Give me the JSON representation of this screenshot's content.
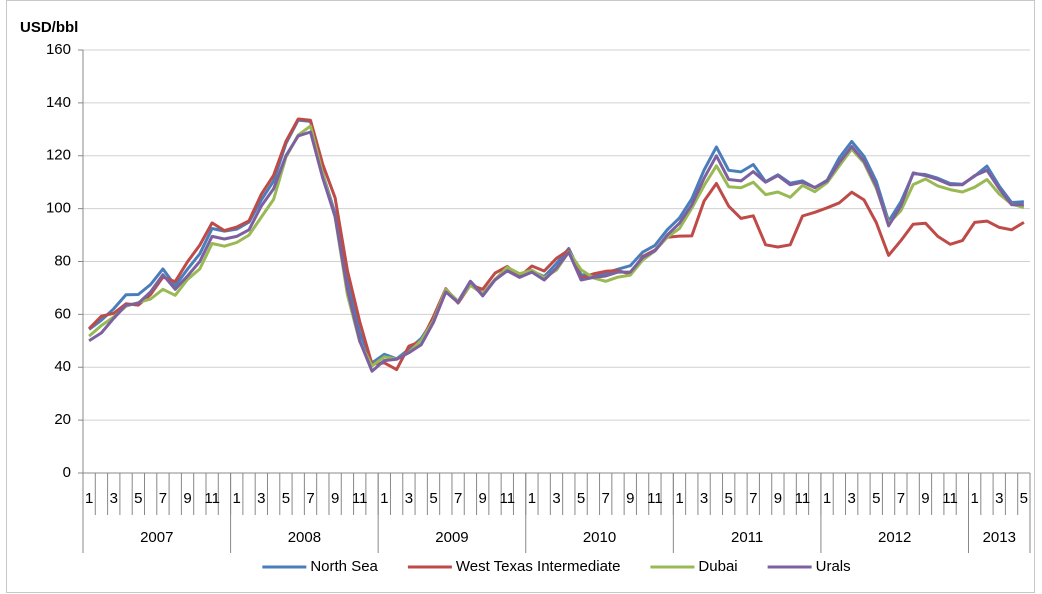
{
  "chart_data": {
    "type": "line",
    "y_axis_label": "USD/bbl",
    "categories": [
      "1",
      null,
      "3",
      null,
      "5",
      null,
      "7",
      null,
      "9",
      null,
      "11",
      null,
      "1",
      null,
      "3",
      null,
      "5",
      null,
      "7",
      null,
      "9",
      null,
      "11",
      null,
      "1",
      null,
      "3",
      null,
      "5",
      null,
      "7",
      null,
      "9",
      null,
      "11",
      null,
      "1",
      null,
      "3",
      null,
      "5",
      null,
      "7",
      null,
      "9",
      null,
      "11",
      null,
      "1",
      null,
      "3",
      null,
      "5",
      null,
      "7",
      null,
      "9",
      null,
      "11",
      null,
      "1",
      null,
      "3",
      null,
      "5",
      null,
      "7",
      null,
      "9",
      null,
      "11",
      null,
      "1",
      null,
      "3",
      null,
      "5"
    ],
    "year_groups": [
      {
        "label": "2007",
        "months": 12
      },
      {
        "label": "2008",
        "months": 12
      },
      {
        "label": "2009",
        "months": 12
      },
      {
        "label": "2010",
        "months": 12
      },
      {
        "label": "2011",
        "months": 12
      },
      {
        "label": "2012",
        "months": 12
      },
      {
        "label": "2013",
        "months": 5
      }
    ],
    "series": [
      {
        "name": "North Sea",
        "color": "#4a7ebb",
        "values": [
          54.3,
          57.8,
          62.1,
          67.4,
          67.5,
          71.3,
          77.2,
          70.8,
          77.1,
          82.9,
          92.5,
          91.5,
          92.2,
          94.9,
          103.3,
          110.4,
          124.6,
          133.5,
          133.0,
          113.2,
          98.1,
          72.8,
          53.2,
          41.6,
          44.9,
          43.2,
          46.8,
          50.9,
          57.9,
          68.6,
          64.9,
          72.5,
          67.7,
          73.2,
          77.0,
          74.7,
          76.4,
          74.3,
          79.3,
          84.9,
          75.0,
          74.7,
          75.6,
          77.1,
          78.4,
          83.5,
          86.1,
          92.0,
          96.5,
          103.7,
          114.6,
          123.3,
          114.5,
          113.9,
          116.7,
          110.2,
          112.8,
          109.6,
          110.5,
          107.9,
          110.7,
          119.3,
          125.4,
          119.8,
          110.3,
          95.2,
          102.6,
          113.2,
          112.9,
          111.5,
          109.5,
          109.2,
          112.3,
          116.1,
          108.5,
          102.3,
          102.6
        ]
      },
      {
        "name": "West Texas Intermediate",
        "color": "#be4b48",
        "values": [
          54.6,
          59.3,
          60.4,
          64.0,
          63.5,
          67.5,
          74.1,
          72.4,
          79.9,
          86.2,
          94.6,
          91.7,
          93.0,
          95.4,
          105.4,
          112.6,
          125.4,
          133.9,
          133.4,
          116.7,
          104.1,
          76.6,
          57.3,
          41.1,
          41.7,
          39.1,
          48.0,
          49.8,
          59.2,
          69.7,
          64.3,
          71.1,
          69.5,
          75.6,
          78.1,
          74.3,
          78.3,
          76.4,
          81.2,
          84.3,
          73.7,
          75.3,
          76.3,
          76.6,
          75.2,
          81.9,
          84.3,
          89.2,
          89.6,
          89.7,
          102.9,
          109.5,
          100.9,
          96.3,
          97.3,
          86.3,
          85.5,
          86.3,
          97.2,
          98.6,
          100.3,
          102.2,
          106.2,
          103.3,
          94.7,
          82.3,
          87.9,
          94.1,
          94.5,
          89.5,
          86.5,
          87.9,
          94.8,
          95.3,
          92.9,
          92.0,
          94.8
        ]
      },
      {
        "name": "Dubai",
        "color": "#98b954",
        "values": [
          51.8,
          55.8,
          59.0,
          63.1,
          64.5,
          65.8,
          69.5,
          67.2,
          73.2,
          77.2,
          86.8,
          85.8,
          87.2,
          90.0,
          96.8,
          103.5,
          119.4,
          127.8,
          131.2,
          112.9,
          96.8,
          67.4,
          49.7,
          40.5,
          43.9,
          43.1,
          45.6,
          50.1,
          57.6,
          69.4,
          65.0,
          71.0,
          67.8,
          73.2,
          77.8,
          75.4,
          76.7,
          73.8,
          76.8,
          83.7,
          76.9,
          73.8,
          72.5,
          74.1,
          74.8,
          80.5,
          84.0,
          89.2,
          92.5,
          100.2,
          108.7,
          116.2,
          108.3,
          107.9,
          110.0,
          105.3,
          106.3,
          104.3,
          108.8,
          106.4,
          109.8,
          116.2,
          122.5,
          117.3,
          107.6,
          94.4,
          99.2,
          109.1,
          111.2,
          108.6,
          107.2,
          106.3,
          108.1,
          111.0,
          105.5,
          101.7,
          100.4
        ]
      },
      {
        "name": "Urals",
        "color": "#7d60a0",
        "values": [
          50.0,
          53.0,
          58.5,
          63.5,
          64.2,
          68.5,
          75.0,
          69.5,
          74.5,
          80.0,
          89.5,
          88.5,
          89.5,
          92.0,
          101.0,
          107.5,
          120.0,
          127.5,
          129.0,
          111.5,
          97.0,
          69.5,
          50.0,
          38.5,
          42.5,
          43.0,
          45.5,
          48.5,
          57.0,
          68.5,
          64.5,
          72.5,
          67.0,
          73.0,
          76.5,
          74.0,
          76.0,
          73.0,
          77.5,
          83.5,
          73.0,
          74.0,
          74.5,
          76.0,
          76.0,
          81.5,
          84.0,
          90.0,
          94.5,
          101.5,
          111.5,
          120.0,
          111.0,
          110.5,
          114.0,
          110.0,
          112.5,
          109.0,
          110.0,
          108.0,
          110.5,
          117.5,
          123.5,
          118.0,
          108.5,
          93.5,
          101.0,
          113.5,
          112.5,
          111.0,
          109.0,
          109.0,
          112.5,
          114.5,
          107.5,
          101.5,
          101.5
        ]
      }
    ],
    "ylim": [
      0,
      160
    ],
    "yticks": [
      0,
      20,
      40,
      60,
      80,
      100,
      120,
      140,
      160
    ],
    "grid": true,
    "legend": "bottom"
  }
}
